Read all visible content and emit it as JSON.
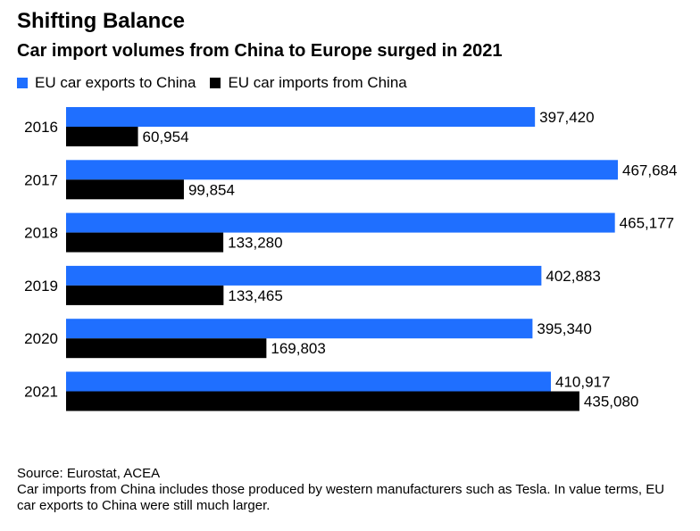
{
  "chart_data": {
    "type": "bar",
    "orientation": "horizontal",
    "title": "Shifting Balance",
    "subtitle": "Car import volumes from China to Europe surged in 2021",
    "categories": [
      "2016",
      "2017",
      "2018",
      "2019",
      "2020",
      "2021"
    ],
    "series": [
      {
        "name": "EU car exports to China",
        "color": "#1F6FFF",
        "values": [
          397420,
          467684,
          465177,
          402883,
          395340,
          410917
        ]
      },
      {
        "name": "EU car imports from China",
        "color": "#000000",
        "values": [
          60954,
          99854,
          133280,
          133465,
          169803,
          435080
        ]
      }
    ],
    "data_labels": [
      [
        "397,420",
        "467,684",
        "465,177",
        "402,883",
        "395,340",
        "410,917"
      ],
      [
        "60,954",
        "99,854",
        "133,280",
        "133,465",
        "169,803",
        "435,080"
      ]
    ],
    "xlim": [
      0,
      467684
    ],
    "grid": false,
    "legend_position": "top-left"
  },
  "footer": {
    "source": "Source: Eurostat, ACEA",
    "note": "Car imports from China includes those produced by western manufacturers such as Tesla. In value terms, EU car exports to China were still much larger."
  }
}
